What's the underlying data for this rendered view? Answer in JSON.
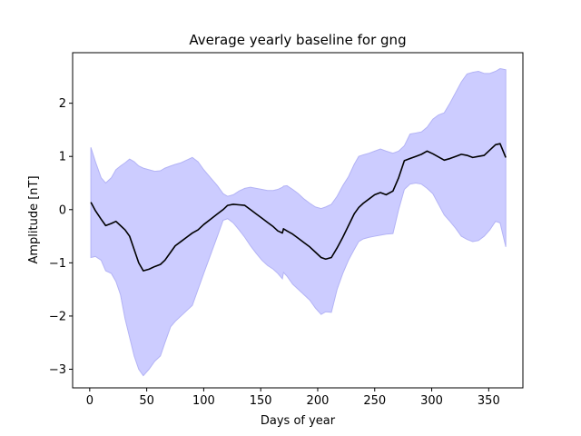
{
  "chart_data": {
    "type": "line",
    "title": "Average yearly baseline for gng",
    "xlabel": "Days of year",
    "ylabel": "Amplitude [nT]",
    "xlim": [
      -15,
      380
    ],
    "ylim": [
      -3.35,
      2.95
    ],
    "xticks": [
      0,
      50,
      100,
      150,
      200,
      250,
      300,
      350
    ],
    "yticks": [
      -3,
      -2,
      -1,
      0,
      1,
      2
    ],
    "grid": false,
    "colors": {
      "line": "#000000",
      "band_fill": "#ccccff",
      "band_edge": "#b3b3f5"
    },
    "series": [
      {
        "x": [
          1,
          5,
          10,
          14,
          19,
          23,
          27,
          31,
          35,
          39,
          43,
          47,
          52,
          57,
          62,
          66,
          71,
          75,
          80,
          85,
          90,
          95,
          100,
          106,
          112,
          117,
          121,
          126,
          131,
          136,
          141,
          146,
          151,
          156,
          161,
          165,
          169,
          170,
          173,
          178,
          183,
          188,
          193,
          198,
          203,
          207,
          212,
          217,
          222,
          227,
          232,
          236,
          240,
          245,
          250,
          255,
          260,
          266,
          271,
          276,
          281,
          286,
          291,
          296,
          301,
          306,
          311,
          316,
          321,
          326,
          331,
          336,
          341,
          346,
          351,
          356,
          360,
          365
        ],
        "values": [
          0.14,
          -0.02,
          -0.18,
          -0.3,
          -0.26,
          -0.22,
          -0.3,
          -0.38,
          -0.5,
          -0.75,
          -1.0,
          -1.15,
          -1.12,
          -1.07,
          -1.03,
          -0.95,
          -0.8,
          -0.68,
          -0.6,
          -0.52,
          -0.44,
          -0.38,
          -0.28,
          -0.18,
          -0.08,
          0.0,
          0.08,
          0.1,
          0.09,
          0.08,
          0.0,
          -0.08,
          -0.16,
          -0.24,
          -0.32,
          -0.4,
          -0.44,
          -0.36,
          -0.4,
          -0.46,
          -0.54,
          -0.62,
          -0.7,
          -0.8,
          -0.9,
          -0.93,
          -0.9,
          -0.72,
          -0.52,
          -0.3,
          -0.08,
          0.04,
          0.12,
          0.2,
          0.28,
          0.32,
          0.28,
          0.35,
          0.6,
          0.92,
          0.96,
          1.0,
          1.04,
          1.1,
          1.05,
          0.99,
          0.93,
          0.96,
          1.0,
          1.04,
          1.02,
          0.98,
          1.0,
          1.02,
          1.12,
          1.22,
          1.24,
          0.98
        ],
        "lower": [
          -0.9,
          -0.88,
          -0.95,
          -1.15,
          -1.2,
          -1.35,
          -1.6,
          -2.05,
          -2.4,
          -2.75,
          -3.0,
          -3.12,
          -3.0,
          -2.85,
          -2.75,
          -2.5,
          -2.2,
          -2.1,
          -2.0,
          -1.9,
          -1.8,
          -1.5,
          -1.2,
          -0.85,
          -0.5,
          -0.2,
          -0.17,
          -0.25,
          -0.38,
          -0.52,
          -0.68,
          -0.82,
          -0.95,
          -1.05,
          -1.12,
          -1.2,
          -1.3,
          -1.18,
          -1.25,
          -1.4,
          -1.5,
          -1.6,
          -1.7,
          -1.85,
          -1.97,
          -1.92,
          -1.93,
          -1.5,
          -1.2,
          -0.95,
          -0.75,
          -0.6,
          -0.55,
          -0.52,
          -0.5,
          -0.48,
          -0.46,
          -0.45,
          0.0,
          0.38,
          0.48,
          0.5,
          0.48,
          0.4,
          0.3,
          0.1,
          -0.1,
          -0.22,
          -0.35,
          -0.5,
          -0.56,
          -0.6,
          -0.58,
          -0.5,
          -0.38,
          -0.22,
          -0.25,
          -0.7
        ],
        "upper": [
          1.17,
          0.9,
          0.6,
          0.5,
          0.6,
          0.75,
          0.82,
          0.88,
          0.95,
          0.9,
          0.82,
          0.78,
          0.75,
          0.72,
          0.73,
          0.78,
          0.82,
          0.85,
          0.88,
          0.93,
          0.98,
          0.9,
          0.75,
          0.6,
          0.45,
          0.3,
          0.25,
          0.28,
          0.35,
          0.4,
          0.42,
          0.4,
          0.38,
          0.36,
          0.36,
          0.38,
          0.42,
          0.44,
          0.45,
          0.38,
          0.3,
          0.2,
          0.12,
          0.05,
          0.02,
          0.05,
          0.1,
          0.25,
          0.45,
          0.62,
          0.85,
          1.0,
          1.03,
          1.06,
          1.1,
          1.14,
          1.1,
          1.06,
          1.1,
          1.2,
          1.42,
          1.44,
          1.46,
          1.55,
          1.7,
          1.78,
          1.82,
          2.0,
          2.2,
          2.4,
          2.55,
          2.58,
          2.6,
          2.56,
          2.56,
          2.6,
          2.65,
          2.63
        ]
      }
    ]
  }
}
